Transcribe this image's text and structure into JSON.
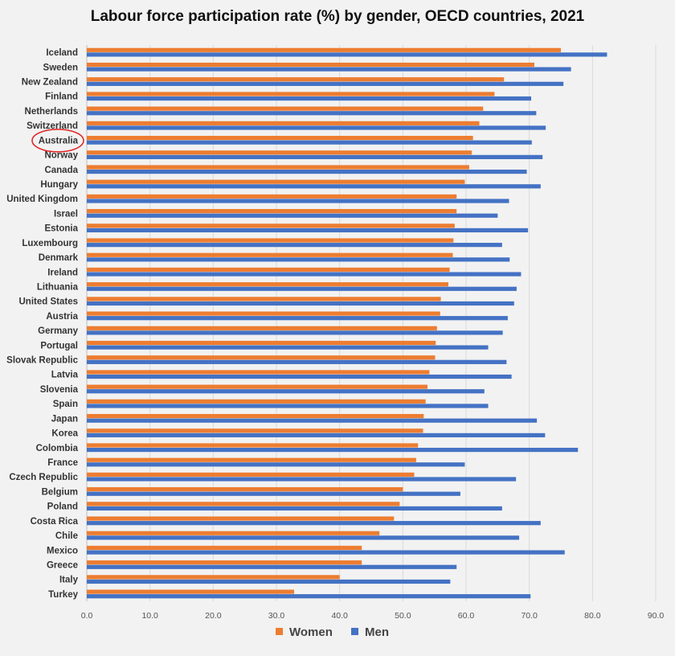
{
  "chart_data": {
    "type": "bar",
    "orientation": "horizontal",
    "title": "Labour force participation rate (%) by gender, OECD countries, 2021",
    "xlabel": "",
    "ylabel": "",
    "xlim": [
      0,
      90
    ],
    "x_ticks": [
      "0.0",
      "10.0",
      "20.0",
      "30.0",
      "40.0",
      "50.0",
      "60.0",
      "70.0",
      "80.0",
      "90.0"
    ],
    "grid": "vertical",
    "legend_position": "bottom",
    "highlighted_category": "Australia",
    "categories": [
      "Iceland",
      "Sweden",
      "New Zealand",
      "Finland",
      "Netherlands",
      "Switzerland",
      "Australia",
      "Norway",
      "Canada",
      "Hungary",
      "United Kingdom",
      "Israel",
      "Estonia",
      "Luxembourg",
      "Denmark",
      "Ireland",
      "Lithuania",
      "United States",
      "Austria",
      "Germany",
      "Portugal",
      "Slovak Republic",
      "Latvia",
      "Slovenia",
      "Spain",
      "Japan",
      "Korea",
      "Colombia",
      "France",
      "Czech Republic",
      "Belgium",
      "Poland",
      "Costa Rica",
      "Chile",
      "Mexico",
      "Greece",
      "Italy",
      "Turkey"
    ],
    "series": [
      {
        "name": "Women",
        "color": "#ed7d31",
        "values": [
          75.0,
          70.8,
          66.0,
          64.5,
          62.7,
          62.1,
          61.1,
          60.9,
          60.5,
          59.8,
          58.5,
          58.5,
          58.2,
          58.0,
          57.9,
          57.4,
          57.2,
          56.0,
          55.9,
          55.4,
          55.2,
          55.1,
          54.2,
          53.9,
          53.6,
          53.3,
          53.2,
          52.4,
          52.1,
          51.8,
          50.0,
          49.5,
          48.6,
          46.3,
          43.5,
          43.5,
          40.0,
          32.8
        ]
      },
      {
        "name": "Men",
        "color": "#4472c4",
        "values": [
          82.3,
          76.6,
          75.4,
          70.3,
          71.1,
          72.6,
          70.4,
          72.1,
          69.6,
          71.8,
          66.8,
          65.0,
          69.8,
          65.7,
          66.9,
          68.7,
          68.0,
          67.6,
          66.6,
          65.8,
          63.5,
          66.4,
          67.2,
          62.9,
          63.5,
          71.2,
          72.5,
          77.7,
          59.8,
          67.9,
          59.1,
          65.7,
          71.8,
          68.4,
          75.6,
          58.5,
          57.5,
          70.2
        ]
      }
    ]
  }
}
